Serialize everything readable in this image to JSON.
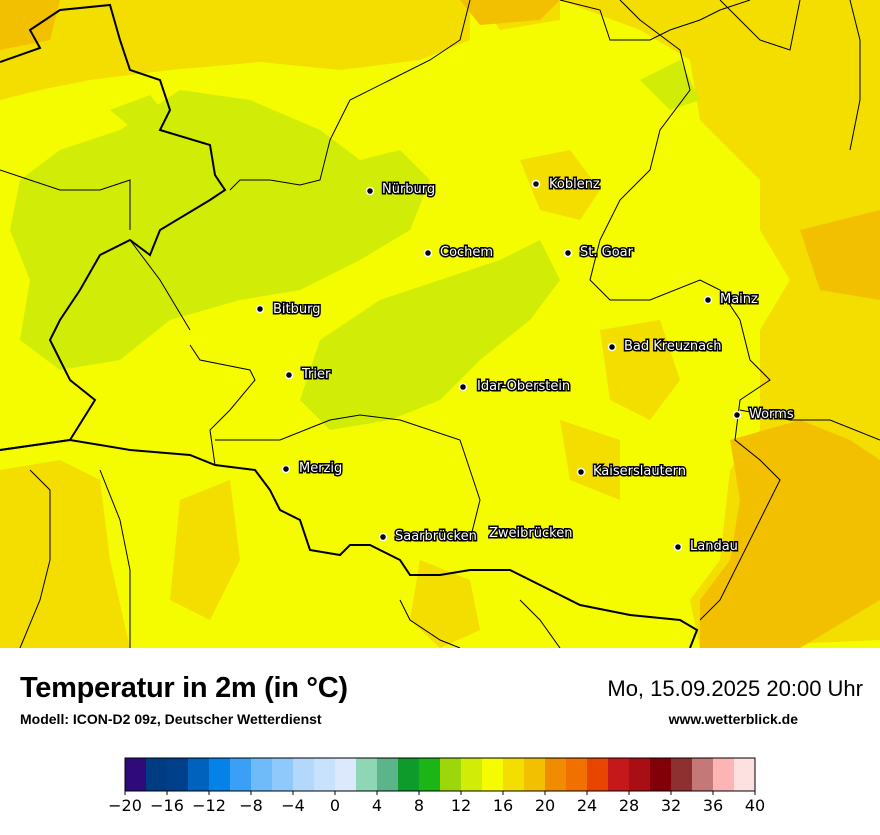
{
  "map": {
    "title": "Temperatur in 2m (in °C)",
    "model": "Modell: ICON-D2 09z, Deutscher Wetterdienst",
    "datetime": "Mo, 15.09.2025 20:00 Uhr",
    "website": "www.wetterblick.de",
    "cities": [
      {
        "name": "Nürburg"
      },
      {
        "name": "Koblenz"
      },
      {
        "name": "Cochem"
      },
      {
        "name": "St. Goar"
      },
      {
        "name": "Bitburg"
      },
      {
        "name": "Mainz"
      },
      {
        "name": "Bad Kreuznach"
      },
      {
        "name": "Trier"
      },
      {
        "name": "Idar-Oberstein"
      },
      {
        "name": "Worms"
      },
      {
        "name": "Merzig"
      },
      {
        "name": "Kaiserslautern"
      },
      {
        "name": "Saarbrücken"
      },
      {
        "name": "Zweibrücken"
      },
      {
        "name": "Landau"
      }
    ]
  },
  "legend": {
    "ticks": [
      "−20",
      "−16",
      "−12",
      "−8",
      "−4",
      "0",
      "4",
      "8",
      "12",
      "16",
      "20",
      "24",
      "28",
      "32",
      "36",
      "40"
    ],
    "colors": [
      "#2e0a7a",
      "#003c82",
      "#00408a",
      "#0062bd",
      "#0482e8",
      "#3aa0f5",
      "#6fbbf9",
      "#8fc8fb",
      "#b3d8fc",
      "#c8e2fd",
      "#dce9fc",
      "#8fd6b6",
      "#5cb48a",
      "#0e9b2c",
      "#1cb518",
      "#9ed60c",
      "#d1ec06",
      "#f5fc00",
      "#f3de00",
      "#f3c000",
      "#f08c00",
      "#f07000",
      "#e84500",
      "#c4181a",
      "#a80f14",
      "#820008",
      "#8e3030",
      "#c47878",
      "#fcb4b4",
      "#fde0e0"
    ]
  }
}
